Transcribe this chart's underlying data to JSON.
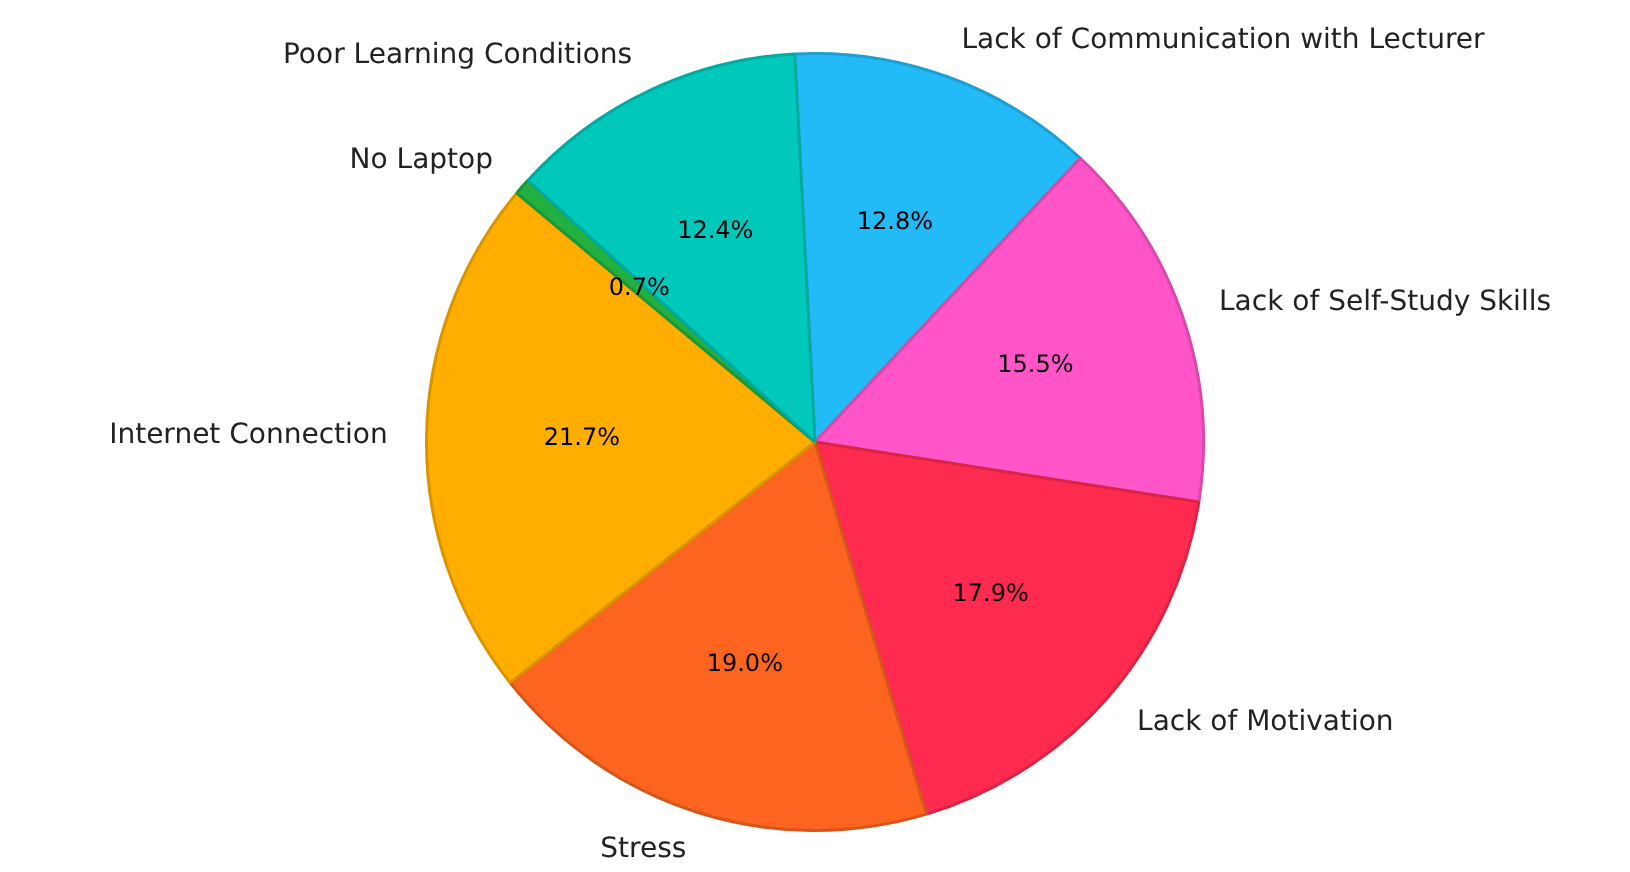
{
  "chart_data": {
    "type": "pie",
    "categories": [
      "Lack of Communication with Lecturer",
      "Lack of Self-Study Skills",
      "Lack of Motivation",
      "Stress",
      "Internet Connection",
      "No Laptop",
      "Poor Learning Conditions"
    ],
    "values": [
      12.8,
      15.5,
      17.9,
      19.0,
      21.7,
      0.7,
      12.4
    ],
    "colors": [
      "#22bbf8",
      "#ff55c8",
      "#ff2a50",
      "#fc6420",
      "#ffae00",
      "#22b040",
      "#00c8bb"
    ],
    "value_labels": [
      "12.8%",
      "15.5%",
      "17.9%",
      "19.0%",
      "21.7%",
      "0.7%",
      "12.4%"
    ],
    "legend": false
  }
}
